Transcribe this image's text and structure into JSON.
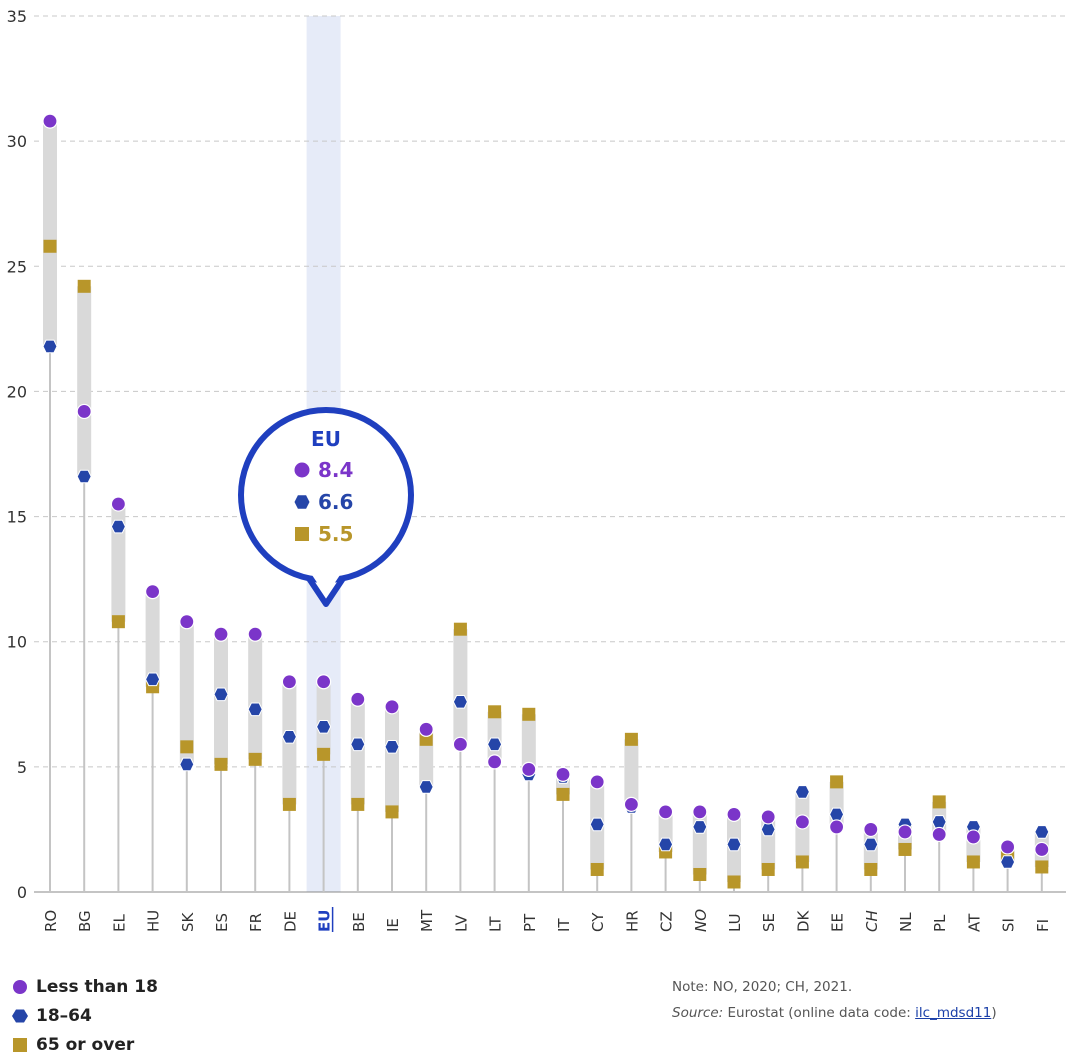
{
  "chart_data": {
    "type": "dot-range",
    "categories": [
      "RO",
      "BG",
      "EL",
      "HU",
      "SK",
      "ES",
      "FR",
      "DE",
      "EU",
      "BE",
      "IE",
      "MT",
      "LV",
      "LT",
      "PT",
      "IT",
      "CY",
      "HR",
      "CZ",
      "NO",
      "LU",
      "SE",
      "DK",
      "EE",
      "CH",
      "NL",
      "PL",
      "AT",
      "SI",
      "FI"
    ],
    "italic_categories": [
      "NO",
      "CH"
    ],
    "highlight_category": "EU",
    "series": [
      {
        "name": "Less than 18",
        "marker": "circle",
        "color": "#7b35c9",
        "values": [
          30.8,
          19.2,
          15.5,
          12.0,
          10.8,
          10.3,
          10.3,
          8.4,
          8.4,
          7.7,
          7.4,
          6.5,
          5.9,
          5.2,
          4.9,
          4.7,
          4.4,
          3.5,
          3.2,
          3.2,
          3.1,
          3.0,
          2.8,
          2.6,
          2.5,
          2.4,
          2.3,
          2.2,
          1.8,
          1.7
        ]
      },
      {
        "name": "18–64",
        "marker": "hexagon",
        "color": "#2545a8",
        "values": [
          21.8,
          16.6,
          14.6,
          8.5,
          5.1,
          7.9,
          7.3,
          6.2,
          6.6,
          5.9,
          5.8,
          4.2,
          7.6,
          5.9,
          4.7,
          4.6,
          2.7,
          3.4,
          1.9,
          2.6,
          1.9,
          2.5,
          4.0,
          3.1,
          1.9,
          2.7,
          2.8,
          2.6,
          1.2,
          2.4
        ]
      },
      {
        "name": "65 or over",
        "marker": "square",
        "color": "#b8962a",
        "values": [
          25.8,
          24.2,
          10.8,
          8.2,
          5.8,
          5.1,
          5.3,
          3.5,
          5.5,
          3.5,
          3.2,
          6.1,
          10.5,
          7.2,
          7.1,
          3.9,
          0.9,
          6.1,
          1.6,
          0.7,
          0.4,
          0.9,
          1.2,
          4.4,
          0.9,
          1.7,
          3.6,
          1.2,
          1.4,
          1.0
        ]
      }
    ],
    "ylim": [
      0,
      35
    ],
    "yticks": [
      0,
      5,
      10,
      15,
      20,
      25,
      30,
      35
    ],
    "grid": true,
    "callout": {
      "title": "EU",
      "values": [
        "8.4",
        "6.6",
        "5.5"
      ]
    }
  },
  "legend": {
    "items": [
      {
        "label": "Less than 18",
        "marker": "circle",
        "color": "#7b35c9"
      },
      {
        "label": "18–64",
        "marker": "hexagon",
        "color": "#2545a8"
      },
      {
        "label": "65 or over",
        "marker": "square",
        "color": "#b8962a"
      }
    ]
  },
  "notes": {
    "note": "Note: NO, 2020; CH, 2021.",
    "source_label": "Source:",
    "source_text": " Eurostat (online data code: ",
    "source_code": "ilc_mdsd11",
    "source_end": ")"
  }
}
